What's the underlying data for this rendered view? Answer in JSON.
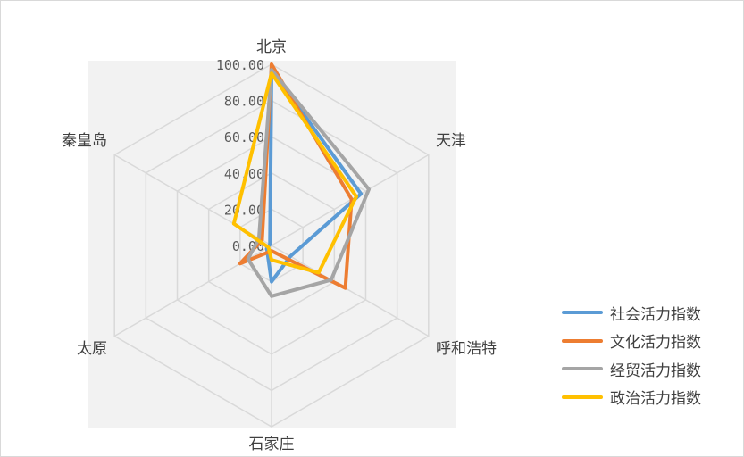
{
  "chart_data": {
    "type": "radar",
    "categories": [
      "北京",
      "天津",
      "呼和浩特",
      "石家庄",
      "太原",
      "秦皇岛"
    ],
    "rlim": [
      0,
      100
    ],
    "ticks": [
      0,
      20,
      40,
      60,
      80,
      100
    ],
    "tick_labels": [
      "0.00",
      "20.00",
      "40.00",
      "60.00",
      "80.00",
      "100.00"
    ],
    "grid": true,
    "legend_position": "right-bottom",
    "series": [
      {
        "name": "社会活力指数",
        "color": "#5b9bd5",
        "values": [
          97,
          57,
          12,
          20,
          3,
          1
        ]
      },
      {
        "name": "文化活力指数",
        "color": "#ed7d31",
        "values": [
          100,
          51,
          47,
          3,
          20,
          6
        ]
      },
      {
        "name": "经贸活力指数",
        "color": "#a5a5a5",
        "values": [
          97,
          62,
          38,
          28,
          15,
          8
        ]
      },
      {
        "name": "政治活力指数",
        "color": "#ffc000",
        "values": [
          95,
          54,
          30,
          8,
          2,
          24
        ]
      }
    ]
  }
}
